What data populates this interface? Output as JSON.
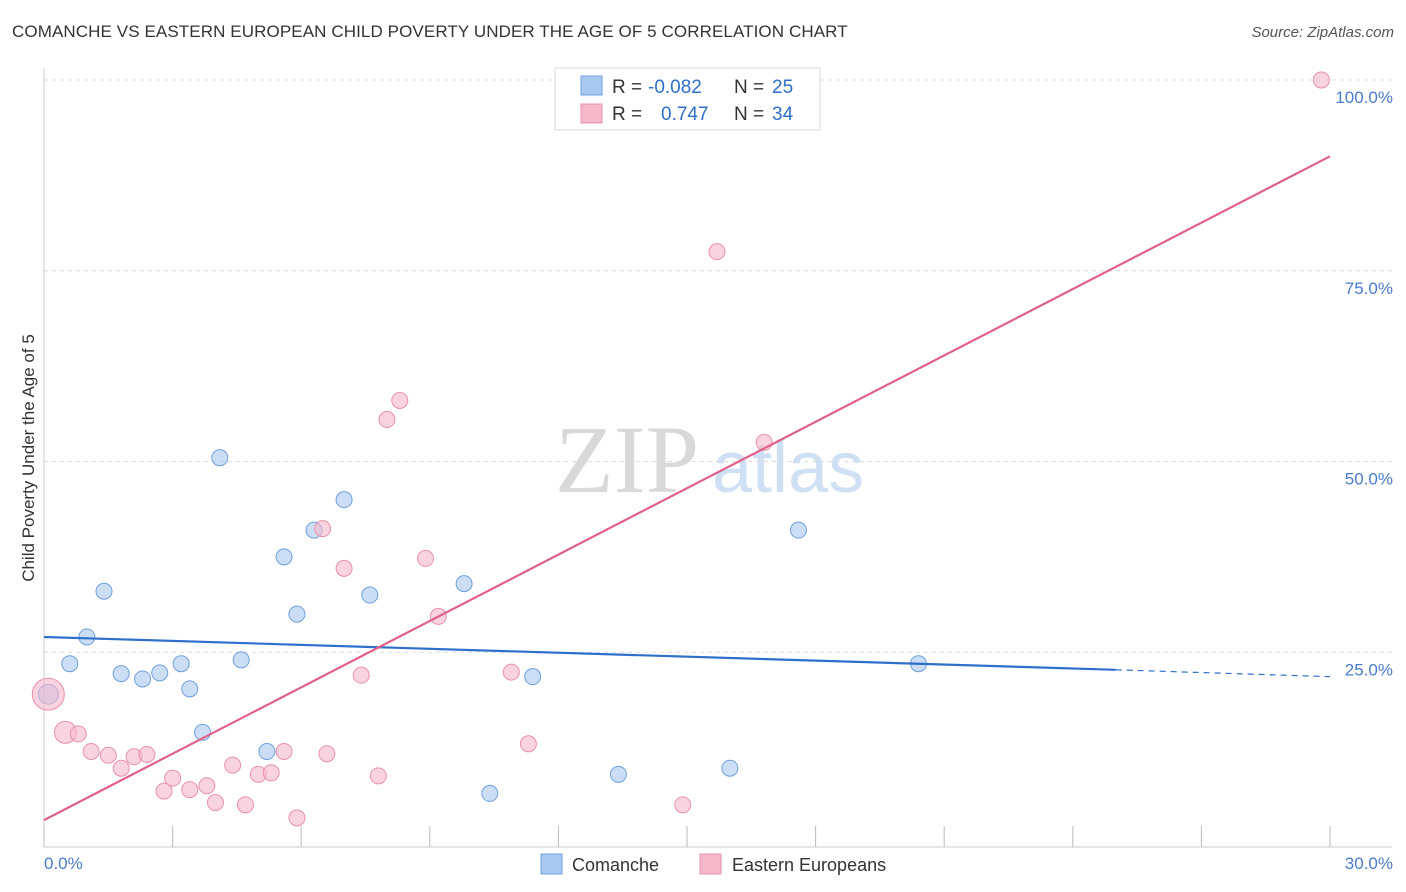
{
  "header": {
    "title": "COMANCHE VS EASTERN EUROPEAN CHILD POVERTY UNDER THE AGE OF 5 CORRELATION CHART",
    "source": "Source: ZipAtlas.com"
  },
  "watermark": {
    "zip": "ZIP",
    "atlas": "atlas"
  },
  "legend": {
    "rows": [
      {
        "r_label": "R =",
        "r_value": "-0.082",
        "n_label": "N =",
        "n_value": "25",
        "color": "#a9c8f0"
      },
      {
        "r_label": "R =",
        "r_value": "0.747",
        "n_label": "N =",
        "n_value": "34",
        "color": "#f5b8cb"
      }
    ]
  },
  "chart_data": {
    "type": "scatter",
    "title": "COMANCHE VS EASTERN EUROPEAN CHILD POVERTY UNDER THE AGE OF 5 CORRELATION CHART",
    "xlabel": "",
    "ylabel": "Child Poverty Under the Age of 5",
    "xlim": [
      0,
      30
    ],
    "ylim": [
      0,
      100
    ],
    "x_tick_labels": [
      "0.0%",
      "30.0%"
    ],
    "y_tick_labels": [
      "100.0%",
      "75.0%",
      "50.0%",
      "25.0%"
    ],
    "y_ticks": [
      100,
      75,
      50,
      25
    ],
    "grid": true,
    "legend_placement": "top-center",
    "series": [
      {
        "name": "Comanche",
        "color": "#a9c8f0",
        "stroke": "#6f9fdc",
        "line_color": "#2f6fcc",
        "points": [
          [
            0.1,
            19.5
          ],
          [
            0.6,
            23.5
          ],
          [
            1.0,
            27.0
          ],
          [
            1.4,
            33.0
          ],
          [
            1.8,
            22.2
          ],
          [
            2.3,
            21.5
          ],
          [
            2.7,
            22.3
          ],
          [
            3.2,
            23.5
          ],
          [
            3.4,
            20.2
          ],
          [
            3.7,
            14.5
          ],
          [
            4.1,
            50.5
          ],
          [
            4.6,
            24.0
          ],
          [
            5.2,
            12.0
          ],
          [
            5.6,
            37.5
          ],
          [
            5.9,
            30.0
          ],
          [
            6.3,
            41.0
          ],
          [
            7.0,
            45.0
          ],
          [
            7.6,
            32.5
          ],
          [
            9.8,
            34.0
          ],
          [
            10.4,
            6.5
          ],
          [
            11.4,
            21.8
          ],
          [
            13.4,
            9.0
          ],
          [
            16.0,
            9.8
          ],
          [
            17.6,
            41.0
          ],
          [
            20.4,
            23.5
          ]
        ],
        "trend": {
          "x": [
            0,
            25
          ],
          "y": [
            27.0,
            22.7
          ]
        },
        "trend_dashed": {
          "x": [
            25,
            30
          ],
          "y": [
            22.7,
            21.8
          ]
        }
      },
      {
        "name": "Eastern Europeans",
        "color": "#f5b8cb",
        "stroke": "#e890ab",
        "line_color": "#e0628a",
        "points": [
          [
            0.1,
            19.5
          ],
          [
            0.5,
            14.5
          ],
          [
            0.8,
            14.3
          ],
          [
            1.1,
            12.0
          ],
          [
            1.5,
            11.5
          ],
          [
            1.8,
            9.8
          ],
          [
            2.1,
            11.3
          ],
          [
            2.4,
            11.6
          ],
          [
            2.8,
            6.8
          ],
          [
            3.0,
            8.5
          ],
          [
            3.4,
            7.0
          ],
          [
            3.8,
            7.5
          ],
          [
            4.0,
            5.3
          ],
          [
            4.4,
            10.2
          ],
          [
            4.7,
            5.0
          ],
          [
            5.0,
            9.0
          ],
          [
            5.3,
            9.2
          ],
          [
            5.6,
            12.0
          ],
          [
            5.9,
            3.3
          ],
          [
            6.5,
            41.2
          ],
          [
            6.6,
            11.7
          ],
          [
            7.0,
            36.0
          ],
          [
            7.4,
            22.0
          ],
          [
            7.8,
            8.8
          ],
          [
            8.0,
            55.5
          ],
          [
            8.3,
            58.0
          ],
          [
            8.9,
            37.3
          ],
          [
            9.2,
            29.7
          ],
          [
            10.9,
            22.4
          ],
          [
            11.3,
            13.0
          ],
          [
            14.9,
            5.0
          ],
          [
            15.7,
            77.5
          ],
          [
            16.8,
            52.5
          ],
          [
            29.8,
            100.0
          ]
        ],
        "trend": {
          "x": [
            0,
            30
          ],
          "y": [
            3.0,
            90.0
          ]
        }
      }
    ]
  },
  "bottom_legend": {
    "items": [
      {
        "label": "Comanche",
        "color": "#a9c8f0"
      },
      {
        "label": "Eastern Europeans",
        "color": "#f5b8cb"
      }
    ]
  }
}
